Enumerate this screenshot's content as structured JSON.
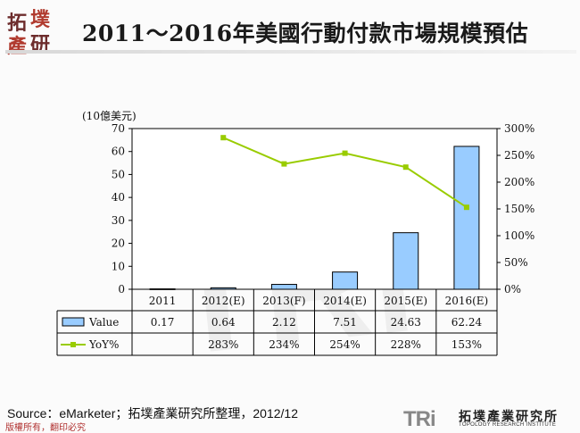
{
  "logo": {
    "chars": [
      "拓",
      "墣",
      "產",
      "研"
    ]
  },
  "title": "2011～2016年美國行動付款市場規模預估",
  "chart_data": {
    "type": "bar",
    "unit_label": "(10億美元)",
    "categories": [
      "2011",
      "2012(E)",
      "2013(F)",
      "2014(E)",
      "2015(E)",
      "2016(E)"
    ],
    "series": [
      {
        "name": "Value",
        "type": "bar",
        "axis": "left",
        "values": [
          0.17,
          0.64,
          2.12,
          7.51,
          24.63,
          62.24
        ],
        "labels": [
          "0.17",
          "0.64",
          "2.12",
          "7.51",
          "24.63",
          "62.24"
        ],
        "color": "#99ccff"
      },
      {
        "name": "YoY%",
        "type": "line",
        "axis": "right",
        "values": [
          null,
          283,
          234,
          254,
          228,
          153
        ],
        "labels": [
          "",
          "283%",
          "234%",
          "254%",
          "228%",
          "153%"
        ],
        "color": "#99cc00"
      }
    ],
    "left_axis": {
      "min": 0,
      "max": 70,
      "step": 10,
      "ticks": [
        "0",
        "10",
        "20",
        "30",
        "40",
        "50",
        "60",
        "70"
      ]
    },
    "right_axis": {
      "min": 0,
      "max": 300,
      "step": 50,
      "ticks": [
        "0%",
        "50%",
        "100%",
        "150%",
        "200%",
        "250%",
        "300%"
      ]
    },
    "legend_position": "data-table"
  },
  "source": "Source：eMarketer；拓墣產業研究所整理，2012/12",
  "copyright": "版權所有，翻印必究",
  "brand": {
    "mark": "TRi",
    "name_cn": "拓墣產業研究所",
    "name_en": "TOPOLOGY RESEARCH INSTITUTE"
  },
  "watermark": {
    "text": "TRi"
  }
}
